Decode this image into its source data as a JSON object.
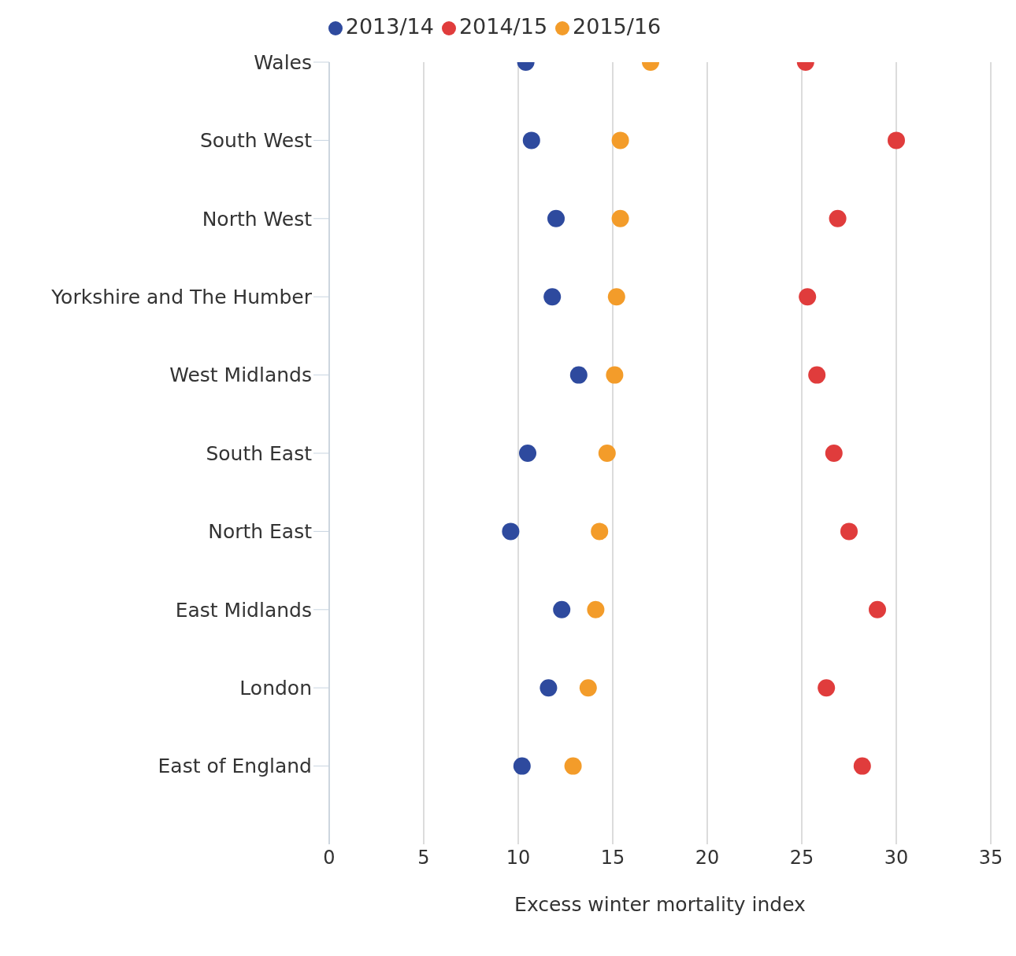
{
  "chart_data": {
    "type": "scatter",
    "orientation": "horizontal",
    "xlabel": "Excess winter mortality index",
    "categories": [
      "Wales",
      "South West",
      "North West",
      "Yorkshire and The Humber",
      "West Midlands",
      "South East",
      "North East",
      "East Midlands",
      "London",
      "East of England"
    ],
    "series": [
      {
        "name": "2013/14",
        "color": "#2e4a9e",
        "values": [
          10.4,
          10.7,
          12.0,
          11.8,
          13.2,
          10.5,
          9.6,
          12.3,
          11.6,
          10.2
        ]
      },
      {
        "name": "2014/15",
        "color": "#e03c3c",
        "values": [
          25.2,
          30.0,
          26.9,
          25.3,
          25.8,
          26.7,
          27.5,
          29.0,
          26.3,
          28.2
        ]
      },
      {
        "name": "2015/16",
        "color": "#f39c2a",
        "values": [
          17.0,
          15.4,
          15.4,
          15.2,
          15.1,
          14.7,
          14.3,
          14.1,
          13.7,
          12.9
        ]
      }
    ],
    "xlim": [
      0,
      35
    ],
    "xticks": [
      0,
      5,
      10,
      15,
      20,
      25,
      30,
      35
    ],
    "grid": "x",
    "legend": "top",
    "marker": "circle"
  }
}
